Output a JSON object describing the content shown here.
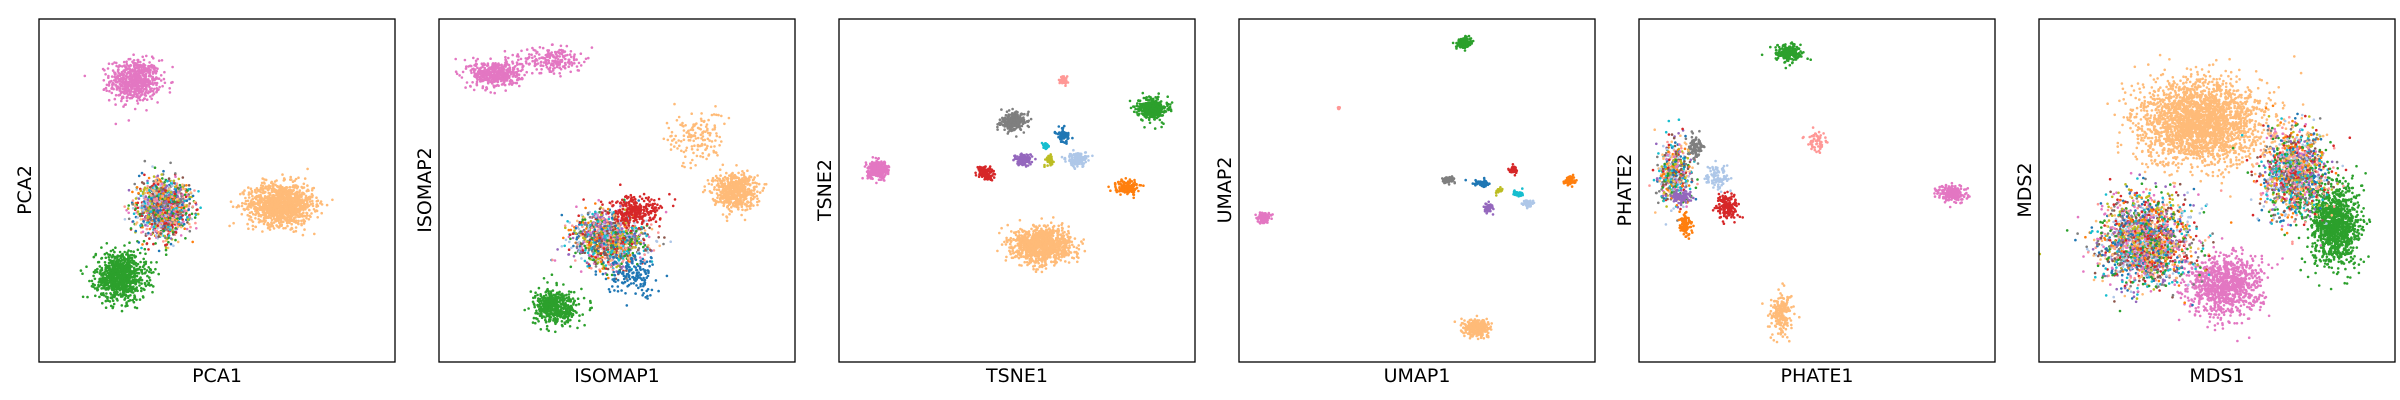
{
  "figure": {
    "background": "#ffffff"
  },
  "chart_data": [
    {
      "type": "scatter",
      "title": "",
      "xlabel": "PCA1",
      "ylabel": "PCA2",
      "xticks": [],
      "yticks": [],
      "xlim": [
        0,
        100
      ],
      "ylim": [
        0,
        100
      ],
      "grid": false,
      "legend": "none",
      "clusters": [
        {
          "name": "pink",
          "color": "#e377c2",
          "center": [
            27,
            82
          ],
          "spread": [
            7,
            6
          ],
          "count": 650
        },
        {
          "name": "peach",
          "color": "#ffbb78",
          "center": [
            68,
            46
          ],
          "spread": [
            9,
            6
          ],
          "count": 1200
        },
        {
          "name": "green",
          "color": "#2ca02c",
          "center": [
            23,
            25
          ],
          "spread": [
            7,
            7
          ],
          "count": 900
        },
        {
          "name": "mixed-center",
          "color": "mixed",
          "center": [
            35,
            45
          ],
          "spread": [
            7,
            8
          ],
          "count": 1400
        }
      ]
    },
    {
      "type": "scatter",
      "title": "",
      "xlabel": "ISOMAP1",
      "ylabel": "ISOMAP2",
      "xticks": [],
      "yticks": [],
      "xlim": [
        0,
        100
      ],
      "ylim": [
        0,
        100
      ],
      "grid": false,
      "legend": "none",
      "clusters": [
        {
          "name": "pink-band",
          "color": "#e377c2",
          "center": [
            16,
            84
          ],
          "spread": [
            7,
            4
          ],
          "count": 450
        },
        {
          "name": "pink-streak",
          "color": "#e377c2",
          "center": [
            32,
            88
          ],
          "spread": [
            8,
            4
          ],
          "count": 200
        },
        {
          "name": "peach",
          "color": "#ffbb78",
          "center": [
            83,
            50
          ],
          "spread": [
            6,
            5
          ],
          "count": 600
        },
        {
          "name": "peach-trail",
          "color": "#ffbb78",
          "center": [
            72,
            65
          ],
          "spread": [
            8,
            8
          ],
          "count": 150
        },
        {
          "name": "green",
          "color": "#2ca02c",
          "center": [
            33,
            16
          ],
          "spread": [
            6,
            5
          ],
          "count": 500
        },
        {
          "name": "mixed-center",
          "color": "mixed",
          "center": [
            48,
            36
          ],
          "spread": [
            10,
            8
          ],
          "count": 1300
        },
        {
          "name": "red",
          "color": "#d62728",
          "center": [
            55,
            44
          ],
          "spread": [
            7,
            4
          ],
          "count": 250
        },
        {
          "name": "blue-trail",
          "color": "#1f77b4",
          "center": [
            55,
            25
          ],
          "spread": [
            8,
            6
          ],
          "count": 150
        }
      ]
    },
    {
      "type": "scatter",
      "title": "",
      "xlabel": "TSNE1",
      "ylabel": "TSNE2",
      "xticks": [],
      "yticks": [],
      "xlim": [
        0,
        100
      ],
      "ylim": [
        0,
        100
      ],
      "grid": false,
      "legend": "none",
      "clusters": [
        {
          "name": "pink",
          "color": "#e377c2",
          "center": [
            11,
            56
          ],
          "spread": [
            3,
            2.5
          ],
          "count": 300
        },
        {
          "name": "peach",
          "color": "#ffbb78",
          "center": [
            57,
            34
          ],
          "spread": [
            8,
            5
          ],
          "count": 1100
        },
        {
          "name": "green",
          "color": "#2ca02c",
          "center": [
            88,
            74
          ],
          "spread": [
            4,
            3
          ],
          "count": 400
        },
        {
          "name": "gray",
          "color": "#7f7f7f",
          "center": [
            49,
            70
          ],
          "spread": [
            3.5,
            2.5
          ],
          "count": 250
        },
        {
          "name": "purple",
          "color": "#9467bd",
          "center": [
            52,
            59
          ],
          "spread": [
            2.5,
            2
          ],
          "count": 120
        },
        {
          "name": "red",
          "color": "#d62728",
          "center": [
            41,
            55
          ],
          "spread": [
            2.2,
            1.8
          ],
          "count": 120
        },
        {
          "name": "lightblue",
          "color": "#aec7e8",
          "center": [
            67,
            59
          ],
          "spread": [
            3,
            2
          ],
          "count": 150
        },
        {
          "name": "orange",
          "color": "#ff7f0e",
          "center": [
            81,
            51
          ],
          "spread": [
            3,
            2
          ],
          "count": 150
        },
        {
          "name": "blue",
          "color": "#1f77b4",
          "center": [
            63,
            66
          ],
          "spread": [
            2,
            2
          ],
          "count": 80
        },
        {
          "name": "salmon",
          "color": "#ff9896",
          "center": [
            63,
            82
          ],
          "spread": [
            1.2,
            1.2
          ],
          "count": 40
        },
        {
          "name": "yellowgreen",
          "color": "#bcbd22",
          "center": [
            59,
            59
          ],
          "spread": [
            1,
            1.5
          ],
          "count": 40
        },
        {
          "name": "teal",
          "color": "#17becf",
          "center": [
            58,
            63
          ],
          "spread": [
            1,
            1
          ],
          "count": 30
        }
      ]
    },
    {
      "type": "scatter",
      "title": "",
      "xlabel": "UMAP1",
      "ylabel": "UMAP2",
      "xticks": [],
      "yticks": [],
      "xlim": [
        0,
        100
      ],
      "ylim": [
        0,
        100
      ],
      "grid": false,
      "legend": "none",
      "clusters": [
        {
          "name": "green",
          "color": "#2ca02c",
          "center": [
            63,
            93
          ],
          "spread": [
            2,
            1.5
          ],
          "count": 150
        },
        {
          "name": "pink",
          "color": "#e377c2",
          "center": [
            7,
            42
          ],
          "spread": [
            1.8,
            1.5
          ],
          "count": 120
        },
        {
          "name": "peach",
          "color": "#ffbb78",
          "center": [
            67,
            10
          ],
          "spread": [
            3.5,
            2.5
          ],
          "count": 300
        },
        {
          "name": "orange",
          "color": "#ff7f0e",
          "center": [
            93,
            53
          ],
          "spread": [
            1.5,
            1.2
          ],
          "count": 80
        },
        {
          "name": "gray",
          "color": "#7f7f7f",
          "center": [
            59,
            53
          ],
          "spread": [
            1.5,
            1
          ],
          "count": 80
        },
        {
          "name": "red",
          "color": "#d62728",
          "center": [
            77,
            56
          ],
          "spread": [
            1.2,
            1.2
          ],
          "count": 50
        },
        {
          "name": "blue",
          "color": "#1f77b4",
          "center": [
            68,
            52
          ],
          "spread": [
            2.5,
            1
          ],
          "count": 60
        },
        {
          "name": "purple",
          "color": "#9467bd",
          "center": [
            70,
            45
          ],
          "spread": [
            1.3,
            1.5
          ],
          "count": 50
        },
        {
          "name": "lightblue",
          "color": "#aec7e8",
          "center": [
            81,
            46
          ],
          "spread": [
            1.5,
            1.2
          ],
          "count": 50
        },
        {
          "name": "teal",
          "color": "#17becf",
          "center": [
            78,
            49
          ],
          "spread": [
            1.5,
            1
          ],
          "count": 40
        },
        {
          "name": "salmon",
          "color": "#ff9896",
          "center": [
            28,
            74
          ],
          "spread": [
            0.6,
            0.6
          ],
          "count": 10
        },
        {
          "name": "yellowgreen",
          "color": "#bcbd22",
          "center": [
            73,
            50
          ],
          "spread": [
            0.8,
            1
          ],
          "count": 20
        }
      ]
    },
    {
      "type": "scatter",
      "title": "",
      "xlabel": "PHATE1",
      "ylabel": "PHATE2",
      "xticks": [],
      "yticks": [],
      "xlim": [
        0,
        100
      ],
      "ylim": [
        0,
        100
      ],
      "grid": false,
      "legend": "none",
      "clusters": [
        {
          "name": "green",
          "color": "#2ca02c",
          "center": [
            42,
            90
          ],
          "spread": [
            4,
            2.5
          ],
          "count": 200
        },
        {
          "name": "pink",
          "color": "#e377c2",
          "center": [
            88,
            49
          ],
          "spread": [
            4,
            2.5
          ],
          "count": 200
        },
        {
          "name": "salmon",
          "color": "#ff9896",
          "center": [
            50,
            64
          ],
          "spread": [
            3,
            3
          ],
          "count": 60
        },
        {
          "name": "peach-stream",
          "color": "#ffbb78",
          "center": [
            40,
            14
          ],
          "spread": [
            3,
            6
          ],
          "count": 200
        },
        {
          "name": "mixed-left",
          "color": "mixed",
          "center": [
            10,
            55
          ],
          "spread": [
            5,
            10
          ],
          "count": 500
        },
        {
          "name": "red",
          "color": "#d62728",
          "center": [
            25,
            45
          ],
          "spread": [
            3,
            4
          ],
          "count": 150
        },
        {
          "name": "gray",
          "color": "#7f7f7f",
          "center": [
            16,
            63
          ],
          "spread": [
            2,
            3
          ],
          "count": 100
        },
        {
          "name": "orange",
          "color": "#ff7f0e",
          "center": [
            13,
            40
          ],
          "spread": [
            2,
            3
          ],
          "count": 100
        },
        {
          "name": "purple",
          "color": "#9467bd",
          "center": [
            12,
            48
          ],
          "spread": [
            3,
            2
          ],
          "count": 80
        },
        {
          "name": "lightblue",
          "color": "#aec7e8",
          "center": [
            22,
            54
          ],
          "spread": [
            3,
            3
          ],
          "count": 100
        }
      ]
    },
    {
      "type": "scatter",
      "title": "",
      "xlabel": "MDS1",
      "ylabel": "MDS2",
      "xticks": [],
      "yticks": [],
      "xlim": [
        0,
        100
      ],
      "ylim": [
        0,
        100
      ],
      "grid": false,
      "legend": "none",
      "clusters": [
        {
          "name": "peach",
          "color": "#ffbb78",
          "center": [
            45,
            70
          ],
          "spread": [
            17,
            12
          ],
          "count": 2500
        },
        {
          "name": "green",
          "color": "#2ca02c",
          "center": [
            83,
            40
          ],
          "spread": [
            7,
            12
          ],
          "count": 1100
        },
        {
          "name": "pink",
          "color": "#e377c2",
          "center": [
            52,
            22
          ],
          "spread": [
            10,
            9
          ],
          "count": 1000
        },
        {
          "name": "mixed-left",
          "color": "mixed",
          "center": [
            30,
            35
          ],
          "spread": [
            13,
            13
          ],
          "count": 2000
        },
        {
          "name": "mixed-right",
          "color": "mixed",
          "center": [
            72,
            55
          ],
          "spread": [
            9,
            13
          ],
          "count": 1300
        }
      ]
    }
  ],
  "mixed_palette": [
    "#1f77b4",
    "#d62728",
    "#ff7f0e",
    "#9467bd",
    "#7f7f7f",
    "#aec7e8",
    "#2ca02c",
    "#8c564b",
    "#17becf",
    "#bcbd22",
    "#ff9896",
    "#ffbb78",
    "#e377c2"
  ]
}
